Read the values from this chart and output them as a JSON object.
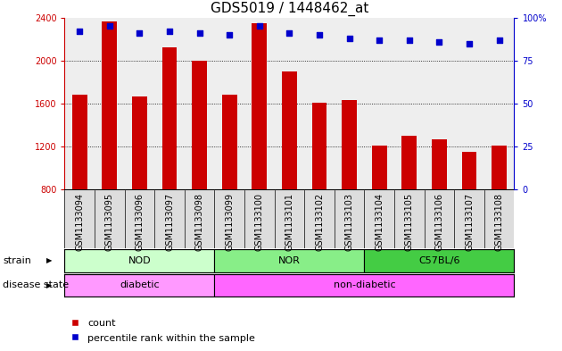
{
  "title": "GDS5019 / 1448462_at",
  "samples": [
    "GSM1133094",
    "GSM1133095",
    "GSM1133096",
    "GSM1133097",
    "GSM1133098",
    "GSM1133099",
    "GSM1133100",
    "GSM1133101",
    "GSM1133102",
    "GSM1133103",
    "GSM1133104",
    "GSM1133105",
    "GSM1133106",
    "GSM1133107",
    "GSM1133108"
  ],
  "counts": [
    1680,
    2360,
    1670,
    2120,
    2000,
    1680,
    2350,
    1900,
    1610,
    1630,
    1210,
    1300,
    1270,
    1150,
    1210
  ],
  "percentiles": [
    92,
    95,
    91,
    92,
    91,
    90,
    95,
    91,
    90,
    88,
    87,
    87,
    86,
    85,
    87
  ],
  "bar_color": "#cc0000",
  "dot_color": "#0000cc",
  "ylim_left": [
    800,
    2400
  ],
  "yticks_left": [
    800,
    1200,
    1600,
    2000,
    2400
  ],
  "ylim_right": [
    0,
    100
  ],
  "yticks_right": [
    0,
    25,
    50,
    75,
    100
  ],
  "ylabel_left_color": "#cc0000",
  "ylabel_right_color": "#0000cc",
  "strain_labels": [
    {
      "label": "NOD",
      "start": 0,
      "end": 5,
      "color": "#ccffcc"
    },
    {
      "label": "NOR",
      "start": 5,
      "end": 10,
      "color": "#88ee88"
    },
    {
      "label": "C57BL/6",
      "start": 10,
      "end": 15,
      "color": "#44cc44"
    }
  ],
  "disease_labels": [
    {
      "label": "diabetic",
      "start": 0,
      "end": 5,
      "color": "#ff99ff"
    },
    {
      "label": "non-diabetic",
      "start": 5,
      "end": 15,
      "color": "#ff66ff"
    }
  ],
  "strain_row_label": "strain",
  "disease_row_label": "disease state",
  "legend_count_label": "count",
  "legend_percentile_label": "percentile rank within the sample",
  "background_color": "#ffffff",
  "ax_background": "#eeeeee",
  "title_fontsize": 11,
  "tick_fontsize": 7,
  "bar_width": 0.5
}
